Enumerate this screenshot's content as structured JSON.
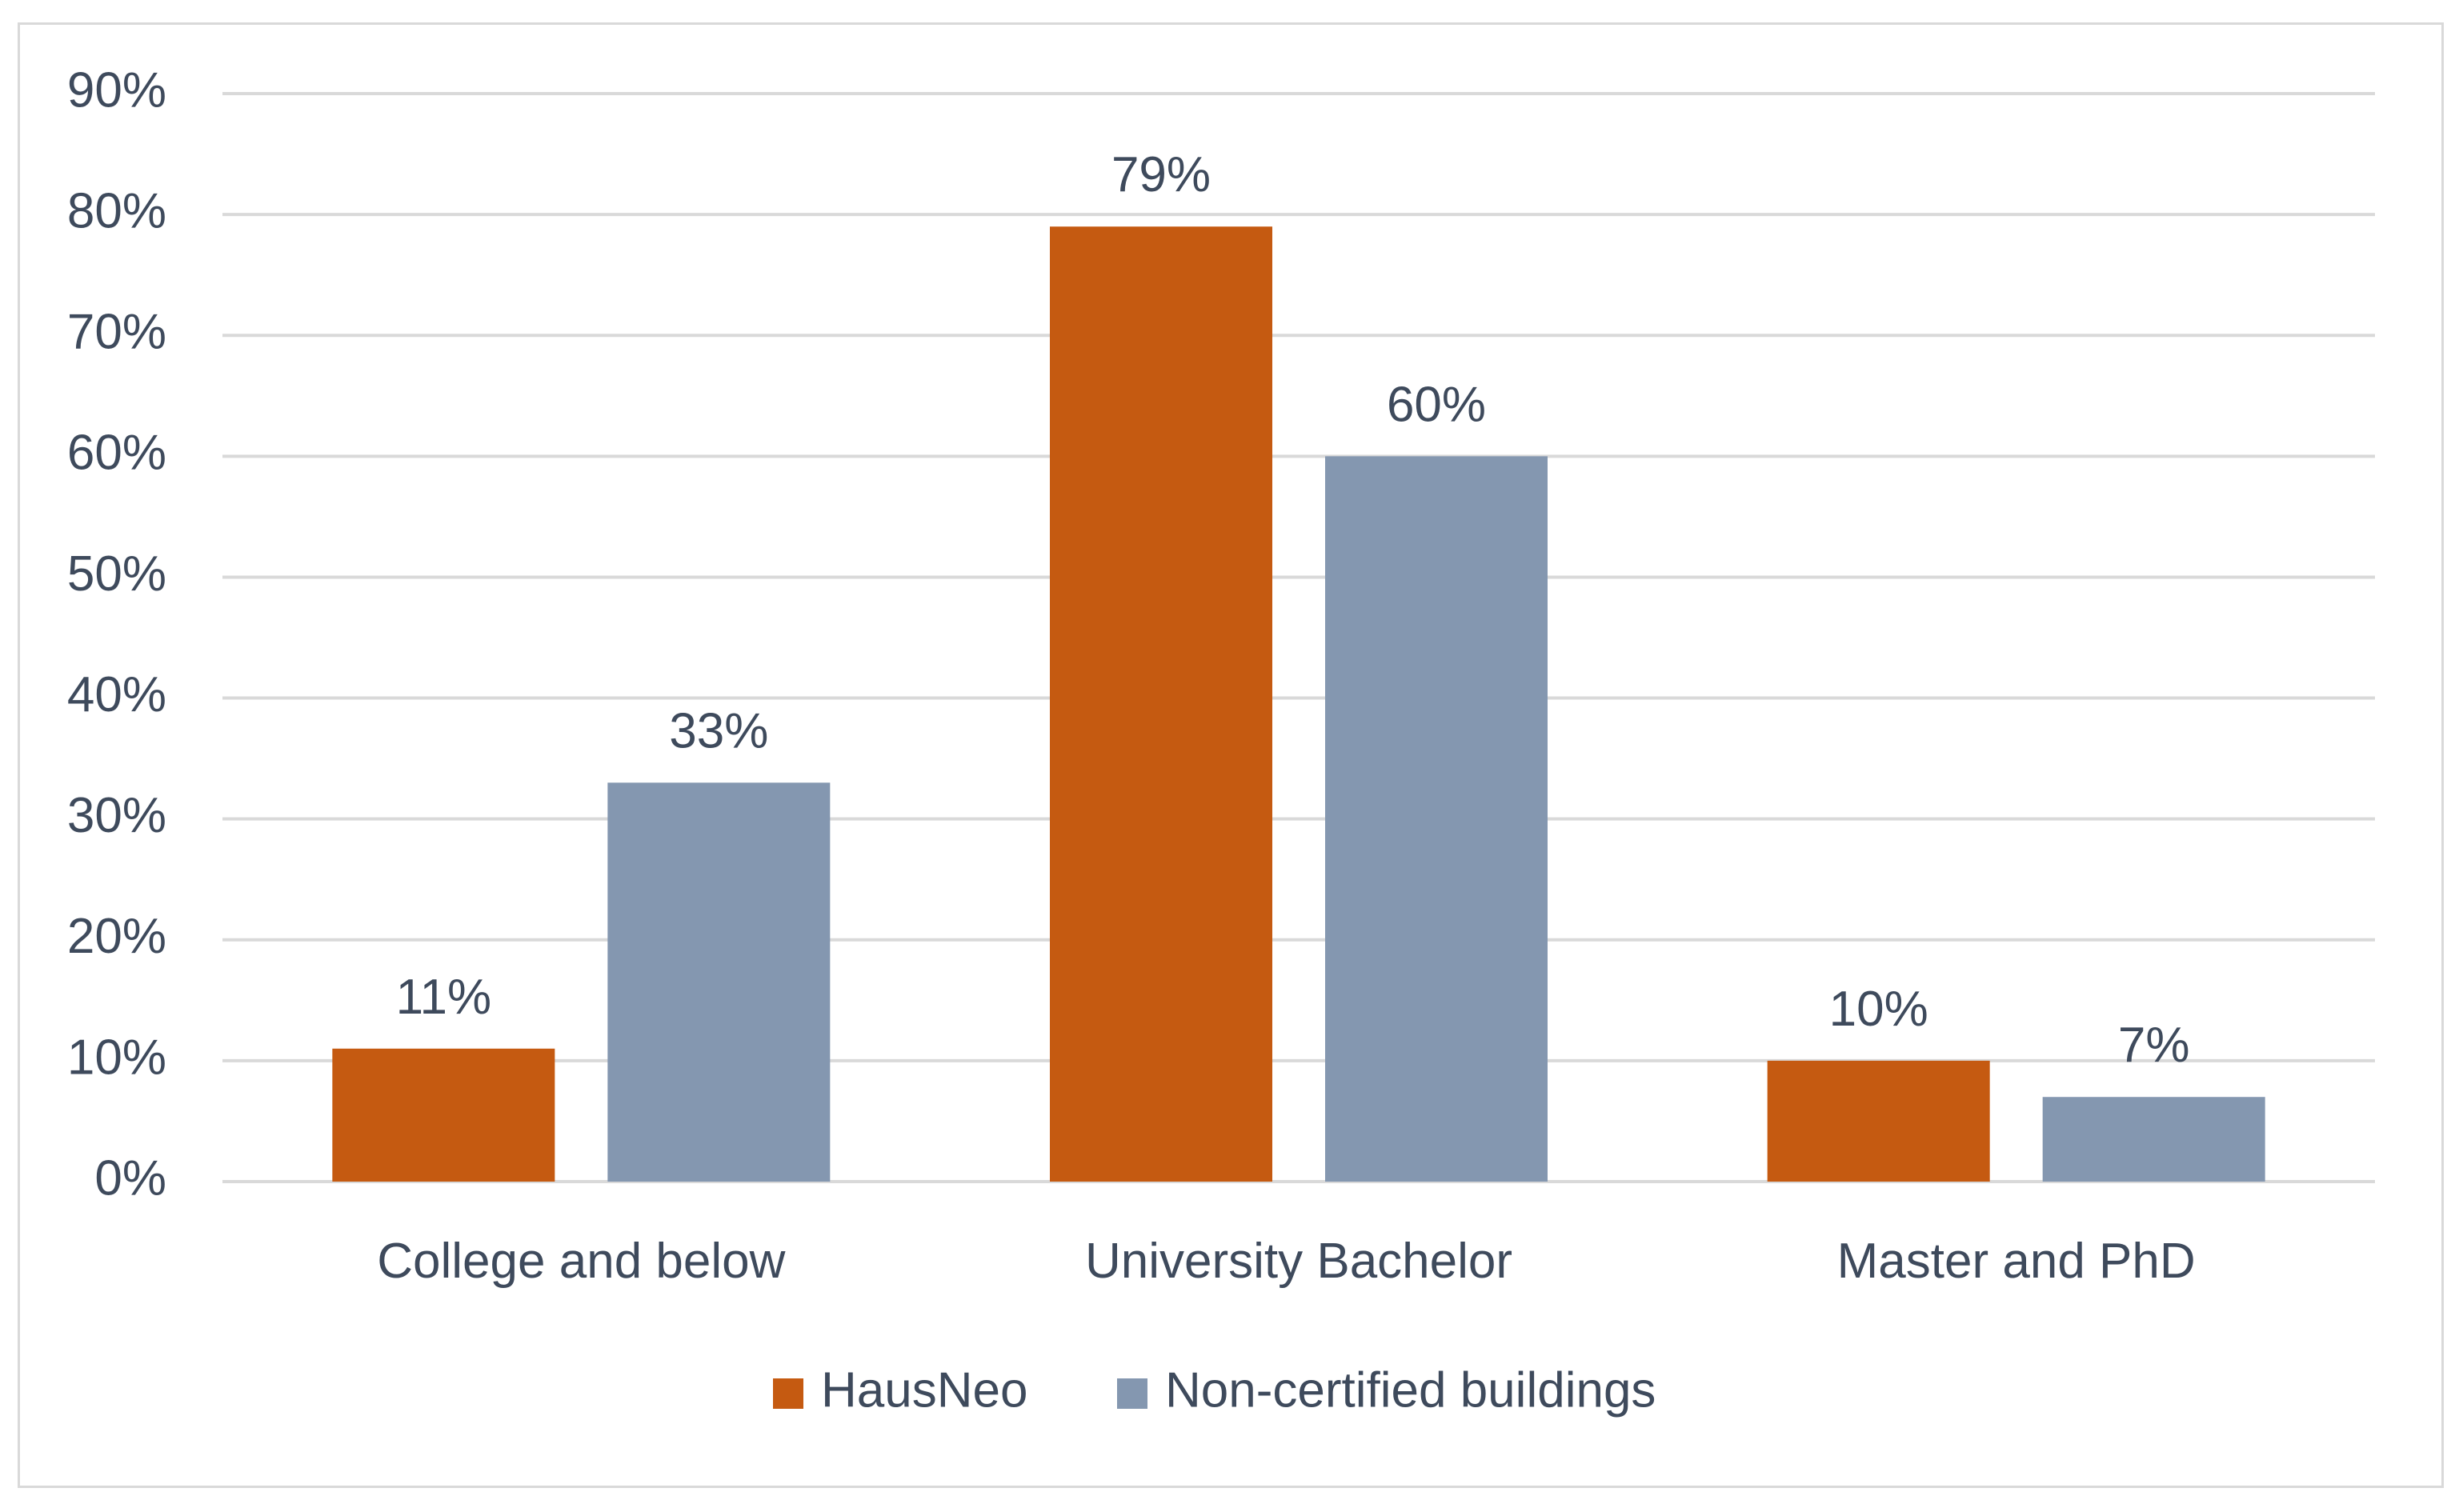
{
  "chart_data": {
    "type": "bar",
    "categories": [
      "College and below",
      "University Bachelor",
      "Master and PhD"
    ],
    "series": [
      {
        "name": "HausNeo",
        "values": [
          11,
          79,
          10
        ],
        "labels": [
          "11%",
          "79%",
          "10%"
        ],
        "color": "#c55a11"
      },
      {
        "name": "Non-certified buildings",
        "values": [
          33,
          60,
          7
        ],
        "labels": [
          "33%",
          "60%",
          "7%"
        ],
        "color": "#8497b0"
      }
    ],
    "yticks": [
      "0%",
      "10%",
      "20%",
      "30%",
      "40%",
      "50%",
      "60%",
      "70%",
      "80%",
      "90%"
    ],
    "ylim": [
      0,
      90
    ],
    "grid": true,
    "legend_position": "bottom",
    "colors": {
      "grid": "#d9d9d9",
      "text": "#3e4a5c",
      "frame": "#d9d9d9"
    }
  }
}
